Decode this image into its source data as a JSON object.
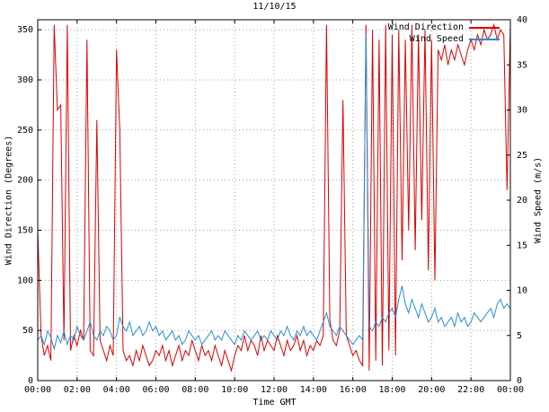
{
  "chart_data": {
    "type": "line",
    "title": "11/10/15",
    "xlabel": "Time GMT",
    "ylabel_left": "Wind Direction (Degrees)",
    "ylabel_right": "Wind Speed (m/s)",
    "grid": true,
    "legend_position": "top-right",
    "x_ticks": [
      "00:00",
      "02:00",
      "04:00",
      "06:00",
      "08:00",
      "10:00",
      "12:00",
      "14:00",
      "16:00",
      "18:00",
      "20:00",
      "22:00",
      "00:00"
    ],
    "x_range_hours": [
      0,
      24
    ],
    "y_left_range": [
      0,
      360
    ],
    "y_left_ticks": [
      0,
      50,
      100,
      150,
      200,
      250,
      300,
      350
    ],
    "y_right_range": [
      0,
      40
    ],
    "y_right_ticks": [
      0,
      5,
      10,
      15,
      20,
      25,
      30,
      35,
      40
    ],
    "x_sampling": {
      "start_minute": 0,
      "step_minutes": 10,
      "count": 145
    },
    "series": [
      {
        "name": "Wind Direction",
        "axis": "left",
        "units": "degrees",
        "color": "#dd0000",
        "values": [
          150,
          45,
          25,
          35,
          20,
          355,
          270,
          275,
          40,
          355,
          30,
          45,
          35,
          50,
          40,
          340,
          30,
          25,
          260,
          40,
          30,
          20,
          35,
          25,
          330,
          250,
          30,
          20,
          25,
          15,
          30,
          20,
          35,
          25,
          15,
          20,
          30,
          25,
          35,
          20,
          30,
          15,
          25,
          35,
          20,
          30,
          25,
          40,
          30,
          20,
          35,
          25,
          30,
          20,
          35,
          25,
          15,
          30,
          20,
          10,
          25,
          35,
          30,
          45,
          30,
          40,
          35,
          25,
          45,
          30,
          40,
          35,
          30,
          45,
          35,
          25,
          40,
          30,
          35,
          45,
          30,
          40,
          25,
          35,
          30,
          40,
          35,
          45,
          355,
          60,
          40,
          35,
          50,
          280,
          45,
          35,
          25,
          30,
          20,
          15,
          355,
          10,
          350,
          20,
          340,
          15,
          355,
          30,
          345,
          25,
          350,
          120,
          340,
          150,
          355,
          130,
          345,
          160,
          350,
          110,
          340,
          100,
          330,
          320,
          335,
          315,
          330,
          320,
          335,
          325,
          315,
          330,
          340,
          330,
          345,
          335,
          350,
          340,
          345,
          355,
          340,
          350,
          345,
          190,
          355
        ]
      },
      {
        "name": "Wind Speed",
        "axis": "right",
        "units": "m/s",
        "color": "#2a8fd0",
        "values": [
          4.5,
          5.0,
          4.0,
          5.5,
          4.8,
          3.5,
          5.0,
          4.2,
          5.5,
          4.0,
          5.0,
          4.5,
          6.0,
          5.0,
          4.5,
          5.5,
          6.5,
          5.0,
          4.5,
          5.5,
          5.0,
          6.0,
          5.5,
          4.5,
          5.0,
          7.0,
          6.0,
          5.5,
          6.5,
          5.0,
          5.5,
          6.0,
          5.0,
          5.5,
          6.5,
          5.5,
          6.0,
          5.0,
          5.5,
          4.5,
          5.0,
          5.5,
          4.5,
          5.0,
          4.0,
          4.5,
          5.5,
          5.0,
          4.5,
          5.0,
          4.0,
          4.5,
          5.0,
          5.5,
          4.5,
          5.0,
          4.5,
          5.5,
          5.0,
          4.5,
          4.0,
          5.0,
          4.5,
          5.5,
          5.0,
          4.5,
          5.0,
          5.5,
          4.5,
          5.0,
          4.5,
          5.5,
          5.0,
          4.5,
          5.5,
          5.0,
          6.0,
          5.0,
          4.5,
          5.5,
          5.0,
          6.0,
          5.0,
          5.5,
          5.0,
          4.5,
          5.5,
          6.5,
          7.5,
          6.0,
          5.5,
          5.0,
          6.0,
          5.5,
          5.0,
          4.5,
          4.0,
          4.5,
          5.0,
          4.5,
          38.5,
          6.0,
          5.5,
          6.5,
          6.0,
          7.0,
          6.5,
          7.5,
          8.0,
          7.0,
          9.0,
          10.5,
          8.5,
          7.5,
          9.0,
          8.0,
          7.0,
          8.5,
          7.5,
          6.5,
          7.0,
          8.0,
          6.5,
          7.0,
          6.0,
          6.5,
          7.0,
          6.0,
          7.5,
          6.5,
          7.0,
          6.0,
          6.5,
          7.5,
          7.0,
          6.5,
          7.0,
          7.5,
          8.0,
          7.0,
          8.5,
          9.0,
          8.0,
          8.5,
          8.0
        ]
      }
    ]
  },
  "colors": {
    "wind_direction": "#dd0000",
    "wind_speed": "#2a8fd0",
    "grid": "#a0a0a0",
    "border": "#000000",
    "background": "#ffffff"
  }
}
